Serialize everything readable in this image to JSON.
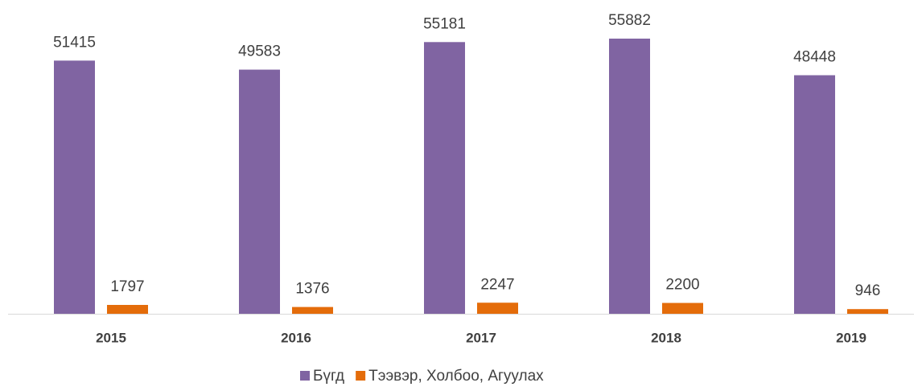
{
  "chart_data": {
    "type": "bar",
    "categories": [
      "2015",
      "2016",
      "2017",
      "2018",
      "2019"
    ],
    "series": [
      {
        "name": "Бүгд",
        "color": "#8064a2",
        "values": [
          51415,
          49583,
          55181,
          55882,
          48448
        ]
      },
      {
        "name": "Тээвэр, Холбоо, Агуулах",
        "color": "#e46c0a",
        "values": [
          1797,
          1376,
          2247,
          2200,
          946
        ]
      }
    ]
  }
}
